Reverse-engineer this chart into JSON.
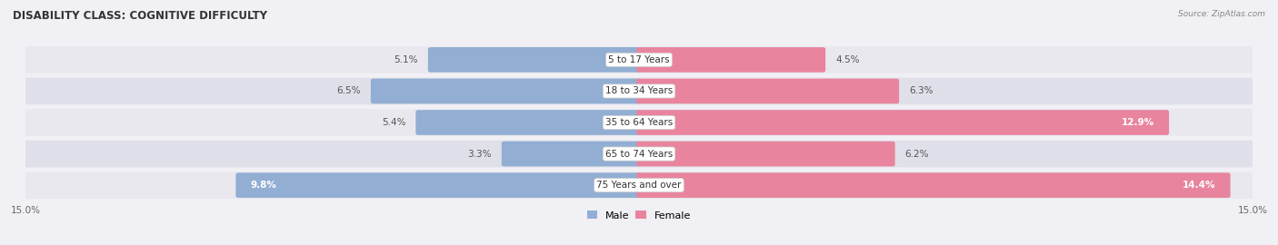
{
  "title": "DISABILITY CLASS: COGNITIVE DIFFICULTY",
  "source": "Source: ZipAtlas.com",
  "categories": [
    "5 to 17 Years",
    "18 to 34 Years",
    "35 to 64 Years",
    "65 to 74 Years",
    "75 Years and over"
  ],
  "male_values": [
    5.1,
    6.5,
    5.4,
    3.3,
    9.8
  ],
  "female_values": [
    4.5,
    6.3,
    12.9,
    6.2,
    14.4
  ],
  "x_max": 15.0,
  "male_color": "#92aed3",
  "female_color": "#e9849e",
  "row_bg_colors": [
    "#e8e8ee",
    "#e0e0ea",
    "#e8e8ee",
    "#e0e0ea",
    "#e8e8ee"
  ],
  "title_fontsize": 8.5,
  "bar_label_fontsize": 7.5,
  "cat_label_fontsize": 7.5,
  "tick_fontsize": 7.5,
  "legend_fontsize": 8,
  "source_fontsize": 6.5
}
